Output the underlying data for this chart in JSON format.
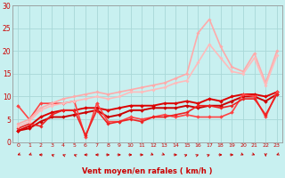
{
  "xlabel": "Vent moyen/en rafales ( km/h )",
  "background_color": "#c8f0f0",
  "grid_color": "#a8d8d8",
  "text_color": "#cc0000",
  "xlim": [
    -0.5,
    23.5
  ],
  "ylim": [
    0,
    30
  ],
  "xticks": [
    0,
    1,
    2,
    3,
    4,
    5,
    6,
    7,
    8,
    9,
    10,
    11,
    12,
    13,
    14,
    15,
    16,
    17,
    18,
    19,
    20,
    21,
    22,
    23
  ],
  "yticks": [
    0,
    5,
    10,
    15,
    20,
    25,
    30
  ],
  "series": [
    {
      "x": [
        0,
        1,
        2,
        3,
        4,
        5,
        6,
        7,
        8,
        9,
        10,
        11,
        12,
        13,
        14,
        15,
        16,
        17,
        18,
        19,
        20,
        21,
        22,
        23
      ],
      "y": [
        2.5,
        3.0,
        4.5,
        5.5,
        5.5,
        6.0,
        6.5,
        7.0,
        5.5,
        6.0,
        7.0,
        7.0,
        7.5,
        7.5,
        7.5,
        8.0,
        7.5,
        8.0,
        8.0,
        9.0,
        10.0,
        10.0,
        9.0,
        10.5
      ],
      "color": "#cc0000",
      "lw": 1.4,
      "marker": "D",
      "ms": 2.0
    },
    {
      "x": [
        0,
        1,
        2,
        3,
        4,
        5,
        6,
        7,
        8,
        9,
        10,
        11,
        12,
        13,
        14,
        15,
        16,
        17,
        18,
        19,
        20,
        21,
        22,
        23
      ],
      "y": [
        2.5,
        3.5,
        5.5,
        6.5,
        7.0,
        7.0,
        7.5,
        7.5,
        7.0,
        7.5,
        8.0,
        8.0,
        8.0,
        8.5,
        8.5,
        9.0,
        8.5,
        9.5,
        9.0,
        10.0,
        10.5,
        10.5,
        10.0,
        11.0
      ],
      "color": "#dd0000",
      "lw": 1.4,
      "marker": "D",
      "ms": 2.0
    },
    {
      "x": [
        0,
        1,
        2,
        3,
        4,
        5,
        6,
        7,
        8,
        9,
        10,
        11,
        12,
        13,
        14,
        15,
        16,
        17,
        18,
        19,
        20,
        21,
        22,
        23
      ],
      "y": [
        8.0,
        5.0,
        8.5,
        8.5,
        8.5,
        9.0,
        1.0,
        8.5,
        4.5,
        4.5,
        5.5,
        5.0,
        5.5,
        6.0,
        5.5,
        6.0,
        5.5,
        5.5,
        5.5,
        6.5,
        10.5,
        10.0,
        5.5,
        11.0
      ],
      "color": "#ff4444",
      "lw": 1.2,
      "marker": "D",
      "ms": 2.0
    },
    {
      "x": [
        0,
        1,
        2,
        3,
        4,
        5,
        6,
        7,
        8,
        9,
        10,
        11,
        12,
        13,
        14,
        15,
        16,
        17,
        18,
        19,
        20,
        21,
        22,
        23
      ],
      "y": [
        3.0,
        4.0,
        3.5,
        6.0,
        7.0,
        7.0,
        1.5,
        7.0,
        4.0,
        4.5,
        5.0,
        4.5,
        5.5,
        5.5,
        6.0,
        6.5,
        8.0,
        8.0,
        7.5,
        8.0,
        9.5,
        9.5,
        6.0,
        10.5
      ],
      "color": "#ee2222",
      "lw": 1.2,
      "marker": "D",
      "ms": 1.8
    },
    {
      "x": [
        0,
        1,
        2,
        3,
        4,
        5,
        6,
        7,
        8,
        9,
        10,
        11,
        12,
        13,
        14,
        15,
        16,
        17,
        18,
        19,
        20,
        21,
        22,
        23
      ],
      "y": [
        4.0,
        5.0,
        7.5,
        8.5,
        9.5,
        10.0,
        10.5,
        11.0,
        10.5,
        11.0,
        11.5,
        12.0,
        12.5,
        13.0,
        14.0,
        15.0,
        24.0,
        27.0,
        21.0,
        16.5,
        15.5,
        19.5,
        13.0,
        20.0
      ],
      "color": "#ffaaaa",
      "lw": 1.2,
      "marker": "D",
      "ms": 1.8
    },
    {
      "x": [
        0,
        1,
        2,
        3,
        4,
        5,
        6,
        7,
        8,
        9,
        10,
        11,
        12,
        13,
        14,
        15,
        16,
        17,
        18,
        19,
        20,
        21,
        22,
        23
      ],
      "y": [
        3.5,
        4.5,
        7.0,
        8.0,
        8.5,
        9.0,
        9.5,
        10.0,
        9.5,
        10.0,
        11.0,
        11.0,
        11.5,
        12.0,
        13.0,
        13.5,
        17.5,
        21.5,
        18.5,
        15.5,
        15.0,
        18.5,
        12.5,
        19.0
      ],
      "color": "#ffbbbb",
      "lw": 1.2,
      "marker": "D",
      "ms": 1.8
    }
  ],
  "wind_symbols": {
    "x_positions": [
      0,
      1,
      2,
      3,
      4,
      5,
      6,
      7,
      8,
      9,
      10,
      11,
      12,
      13,
      14,
      15,
      16,
      17,
      18,
      19,
      20,
      21,
      22,
      23
    ],
    "angles_deg": [
      225,
      225,
      270,
      315,
      315,
      315,
      270,
      270,
      90,
      90,
      90,
      90,
      135,
      135,
      90,
      45,
      45,
      45,
      90,
      90,
      135,
      135,
      180,
      225
    ]
  }
}
